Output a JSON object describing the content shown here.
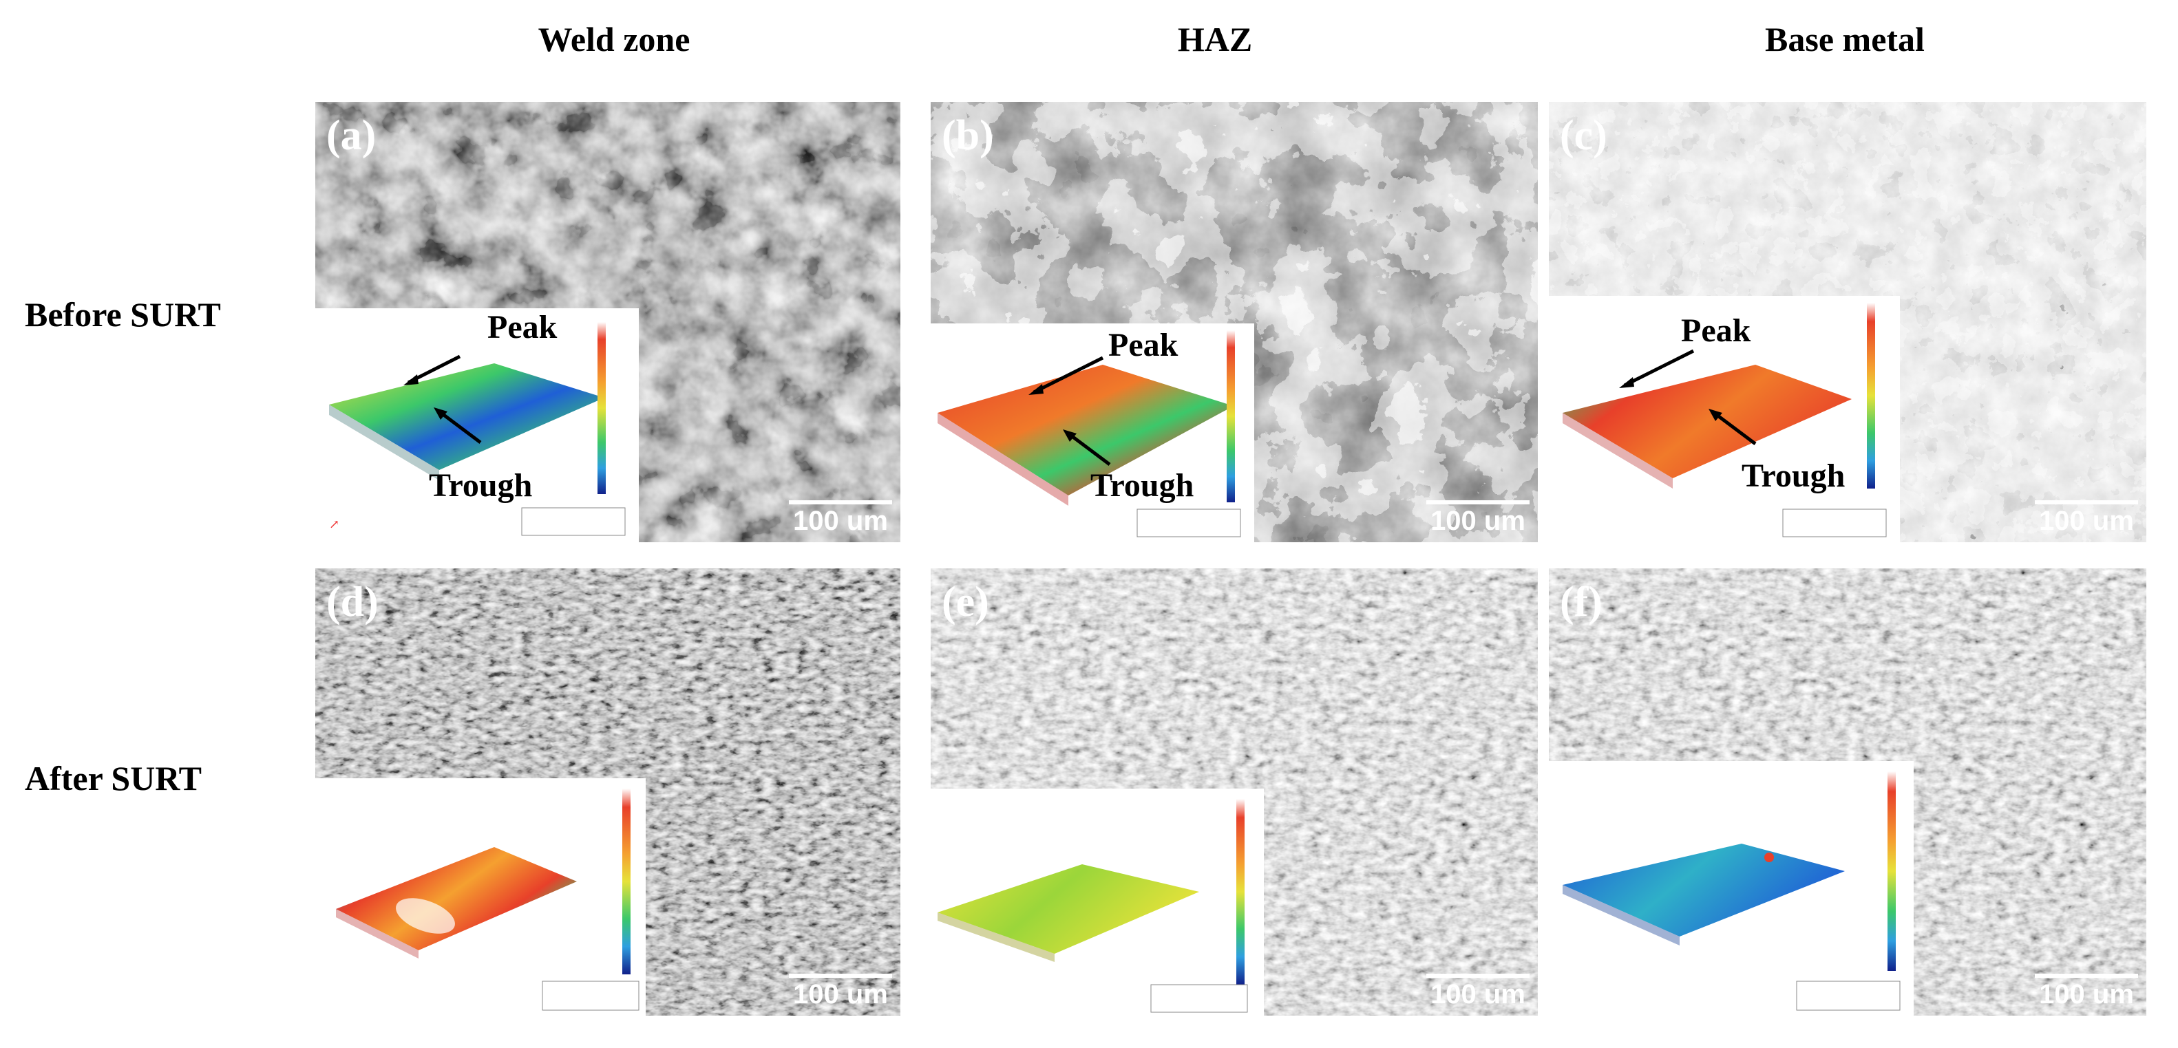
{
  "columns": {
    "weld": "Weld zone",
    "haz": "HAZ",
    "base": "Base metal"
  },
  "rows": {
    "before": "Before SURT",
    "after": "After SURT"
  },
  "panels": {
    "a": {
      "tag": "(a)",
      "scale": "100 um"
    },
    "b": {
      "tag": "(b)",
      "scale": "100 um"
    },
    "c": {
      "tag": "(c)",
      "scale": "100 um"
    },
    "d": {
      "tag": "(d)",
      "scale": "100 um"
    },
    "e": {
      "tag": "(e)",
      "scale": "100 um"
    },
    "f": {
      "tag": "(f)",
      "scale": "100 um"
    }
  },
  "annotations": {
    "peak": "Peak",
    "trough": "Trough"
  },
  "colors": {
    "micrograph_dark": "#1c1c1c",
    "micrograph_light": "#bdbdbd",
    "surface_red": "#e8402a",
    "surface_yellow": "#e6e23a",
    "surface_green": "#3cc86a",
    "surface_blue": "#1f5fd6"
  }
}
